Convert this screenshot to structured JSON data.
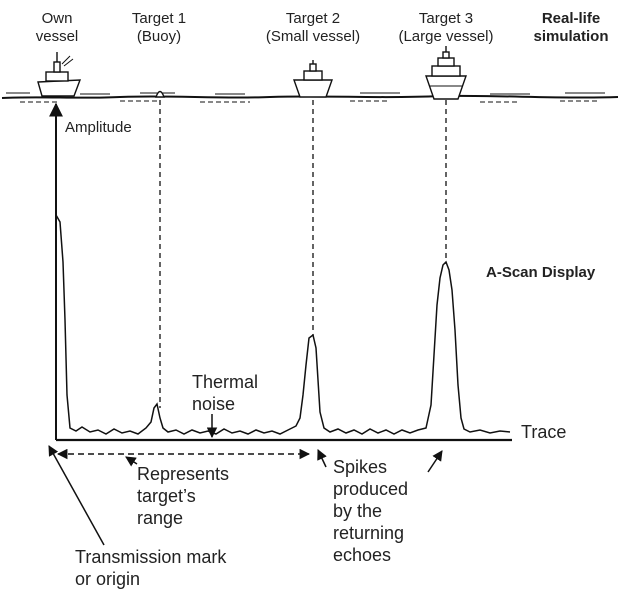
{
  "targets": [
    {
      "line1": "Own",
      "line2": "vessel"
    },
    {
      "line1": "Target 1",
      "line2": "(Buoy)"
    },
    {
      "line1": "Target 2",
      "line2": "(Small vessel)"
    },
    {
      "line1": "Target 3",
      "line2": "(Large vessel)"
    }
  ],
  "real_life": {
    "line1": "Real-life",
    "line2": "simulation"
  },
  "ascan_label": "A-Scan Display",
  "amplitude_label": "Amplitude",
  "thermal": {
    "line1": "Thermal",
    "line2": "noise"
  },
  "trace_label": "Trace",
  "range": {
    "line1": "Represents",
    "line2": "target’s",
    "line3": "range"
  },
  "spikes": {
    "line1": "Spikes",
    "line2": "produced",
    "line3": "by the",
    "line4": "returning",
    "line5": "echoes"
  },
  "transmission": {
    "line1": "Transmission mark",
    "line2": "or origin"
  },
  "colors": {
    "ink": "#111111",
    "text": "#222222"
  }
}
